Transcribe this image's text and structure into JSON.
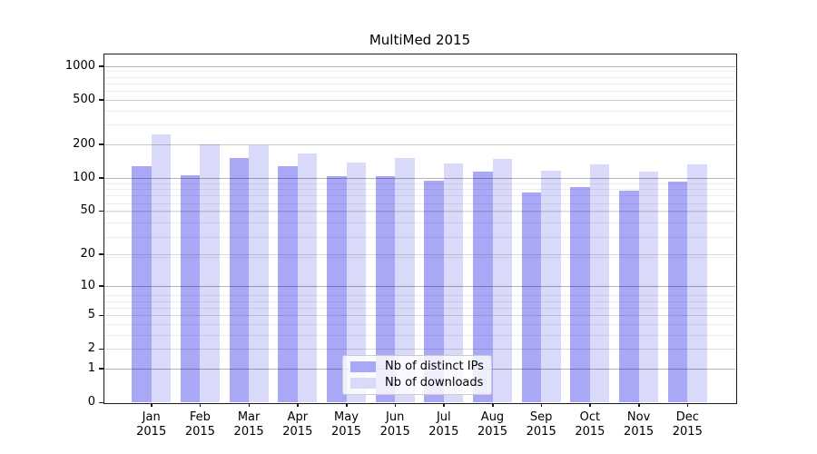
{
  "chart_data": {
    "type": "bar",
    "title": "MultiMed 2015",
    "categories": [
      "Jan 2015",
      "Feb 2015",
      "Mar 2015",
      "Apr 2015",
      "May 2015",
      "Jun 2015",
      "Jul 2015",
      "Aug 2015",
      "Sep 2015",
      "Oct 2015",
      "Nov 2015",
      "Dec 2015"
    ],
    "series": [
      {
        "name": "Nb of distinct IPs",
        "color": "#a8a8f6",
        "values": [
          128,
          105,
          150,
          126,
          103,
          103,
          94,
          113,
          74,
          82,
          77,
          92
        ]
      },
      {
        "name": "Nb of downloads",
        "color": "#d9d9f9",
        "values": [
          246,
          199,
          194,
          165,
          136,
          150,
          134,
          149,
          115,
          133,
          113,
          132
        ]
      }
    ],
    "xlabel": "",
    "ylabel": "",
    "y_axis": {
      "ticks": [
        0,
        1,
        2,
        5,
        10,
        20,
        50,
        100,
        200,
        500,
        1000
      ],
      "scale": "log10(value+1)",
      "range": [
        0,
        1300
      ]
    },
    "legend_position": "lower center",
    "grid": true
  },
  "colors": {
    "major_grid": "#b2b2b2",
    "labeled_grid": "#dbdbdb",
    "minor_grid": "#ededed",
    "spine": "#1a1a1a",
    "background": "#ffffff"
  }
}
